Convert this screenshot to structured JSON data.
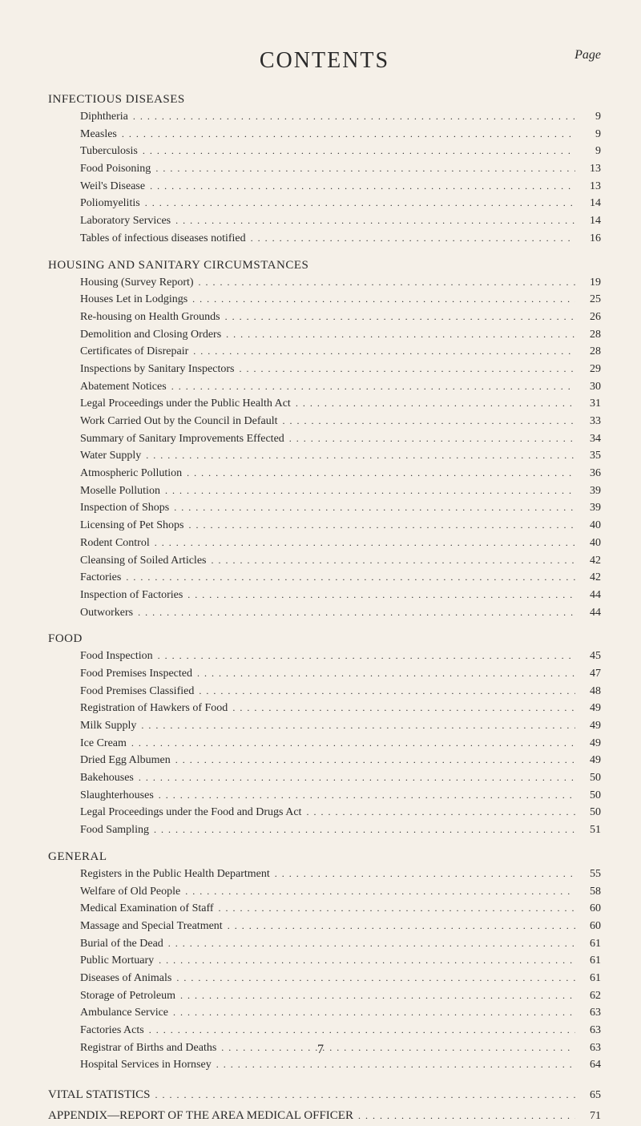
{
  "title": "CONTENTS",
  "page_label": "Page",
  "page_number": "7",
  "typography": {
    "title_fontsize": 28,
    "section_fontsize": 15,
    "entry_fontsize": 14,
    "font_family": "Georgia, Times New Roman, serif"
  },
  "colors": {
    "background": "#f5f0e8",
    "text": "#2a2a2a"
  },
  "sections": [
    {
      "title": "INFECTIOUS DISEASES",
      "entries": [
        {
          "label": "Diphtheria",
          "page": "9"
        },
        {
          "label": "Measles",
          "page": "9"
        },
        {
          "label": "Tuberculosis",
          "page": "9"
        },
        {
          "label": "Food Poisoning",
          "page": "13"
        },
        {
          "label": "Weil's Disease",
          "page": "13"
        },
        {
          "label": "Poliomyelitis",
          "page": "14"
        },
        {
          "label": "Laboratory Services",
          "page": "14"
        },
        {
          "label": "Tables of infectious diseases notified",
          "page": "16"
        }
      ]
    },
    {
      "title": "HOUSING AND SANITARY CIRCUMSTANCES",
      "entries": [
        {
          "label": "Housing (Survey Report)",
          "page": "19"
        },
        {
          "label": "Houses Let in Lodgings",
          "page": "25"
        },
        {
          "label": "Re-housing on Health Grounds",
          "page": "26"
        },
        {
          "label": "Demolition and Closing Orders",
          "page": "28"
        },
        {
          "label": "Certificates of Disrepair",
          "page": "28"
        },
        {
          "label": "Inspections by Sanitary Inspectors",
          "page": "29"
        },
        {
          "label": "Abatement Notices",
          "page": "30"
        },
        {
          "label": "Legal Proceedings under the Public Health Act",
          "page": "31"
        },
        {
          "label": "Work Carried Out by the Council in Default",
          "page": "33"
        },
        {
          "label": "Summary of Sanitary Improvements Effected",
          "page": "34"
        },
        {
          "label": "Water Supply",
          "page": "35"
        },
        {
          "label": "Atmospheric Pollution",
          "page": "36"
        },
        {
          "label": "Moselle Pollution",
          "page": "39"
        },
        {
          "label": "Inspection of Shops",
          "page": "39"
        },
        {
          "label": "Licensing of Pet Shops",
          "page": "40"
        },
        {
          "label": "Rodent Control",
          "page": "40"
        },
        {
          "label": "Cleansing of Soiled Articles",
          "page": "42"
        },
        {
          "label": "Factories",
          "page": "42"
        },
        {
          "label": "Inspection of Factories",
          "page": "44"
        },
        {
          "label": "Outworkers",
          "page": "44"
        }
      ]
    },
    {
      "title": "FOOD",
      "entries": [
        {
          "label": "Food Inspection",
          "page": "45"
        },
        {
          "label": "Food Premises Inspected",
          "page": "47"
        },
        {
          "label": "Food Premises Classified",
          "page": "48"
        },
        {
          "label": "Registration of Hawkers of Food",
          "page": "49"
        },
        {
          "label": "Milk Supply",
          "page": "49"
        },
        {
          "label": "Ice Cream",
          "page": "49"
        },
        {
          "label": "Dried Egg Albumen",
          "page": "49"
        },
        {
          "label": "Bakehouses",
          "page": "50"
        },
        {
          "label": "Slaughterhouses",
          "page": "50"
        },
        {
          "label": "Legal Proceedings under the Food and Drugs Act",
          "page": "50"
        },
        {
          "label": "Food Sampling",
          "page": "51"
        }
      ]
    },
    {
      "title": "GENERAL",
      "entries": [
        {
          "label": "Registers in the Public Health Department",
          "page": "55"
        },
        {
          "label": "Welfare of Old People",
          "page": "58"
        },
        {
          "label": "Medical Examination of Staff",
          "page": "60"
        },
        {
          "label": "Massage and Special Treatment",
          "page": "60"
        },
        {
          "label": "Burial of the Dead",
          "page": "61"
        },
        {
          "label": "Public Mortuary",
          "page": "61"
        },
        {
          "label": "Diseases of Animals",
          "page": "61"
        },
        {
          "label": "Storage of Petroleum",
          "page": "62"
        },
        {
          "label": "Ambulance Service",
          "page": "63"
        },
        {
          "label": "Factories Acts",
          "page": "63"
        },
        {
          "label": "Registrar of Births and Deaths",
          "page": "63"
        },
        {
          "label": "Hospital Services in Hornsey",
          "page": "64"
        }
      ]
    }
  ],
  "standalone_entries": [
    {
      "label": "VITAL STATISTICS",
      "page": "65"
    },
    {
      "label": "APPENDIX—REPORT OF THE AREA MEDICAL OFFICER",
      "page": "71"
    }
  ]
}
